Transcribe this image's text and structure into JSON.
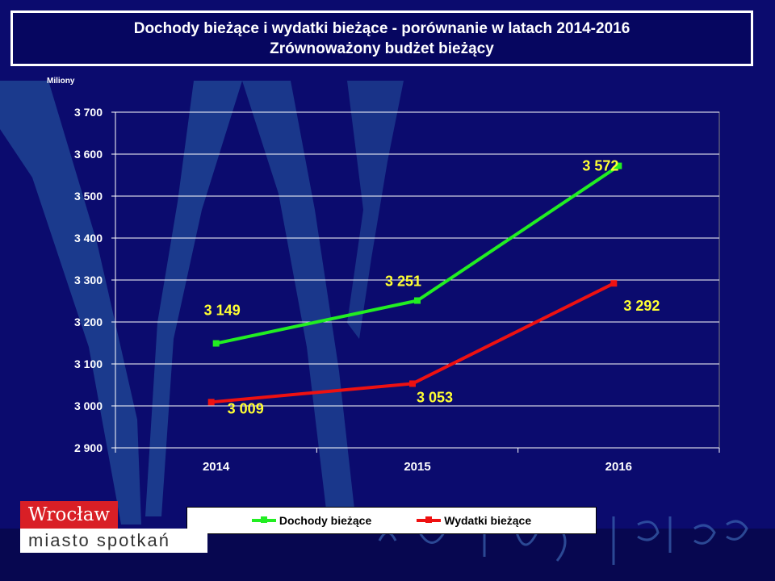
{
  "header": {
    "title_line1": "Dochody bieżące i wydatki bieżące - porównanie w latach 2014-2016",
    "title_line2": "Zrównoważony budżet bieżący"
  },
  "logo": {
    "top": "Wrocław",
    "bottom": "miasto spotkań"
  },
  "colors": {
    "background": "#0b0b6e",
    "series1": "#22ee22",
    "series2": "#ee1111",
    "data_label": "#ffff33",
    "grid": "#ffffff"
  },
  "chart_data": {
    "type": "line",
    "title": "Dochody bieżące i wydatki bieżące - porównanie w latach 2014-2016",
    "subtitle": "Zrównoważony budżet bieżący",
    "ylabel": "Miliony",
    "xlabel": "",
    "categories": [
      "2014",
      "2015",
      "2016"
    ],
    "ylim": [
      2900,
      3700
    ],
    "yticks": [
      2900,
      3000,
      3100,
      3200,
      3300,
      3400,
      3500,
      3600,
      3700
    ],
    "ytick_labels": [
      "2 900",
      "3 000",
      "3 100",
      "3 200",
      "3 300",
      "3 400",
      "3 500",
      "3 600",
      "3 700"
    ],
    "grid": true,
    "legend_position": "bottom",
    "series": [
      {
        "name": "Dochody bieżące",
        "values": [
          3149,
          3251,
          3572
        ],
        "labels": [
          "3 149",
          "3 251",
          "3 572"
        ],
        "color": "#22ee22"
      },
      {
        "name": "Wydatki bieżące",
        "values": [
          3009,
          3053,
          3292
        ],
        "labels": [
          "3 009",
          "3 053",
          "3 292"
        ],
        "color": "#ee1111"
      }
    ]
  }
}
